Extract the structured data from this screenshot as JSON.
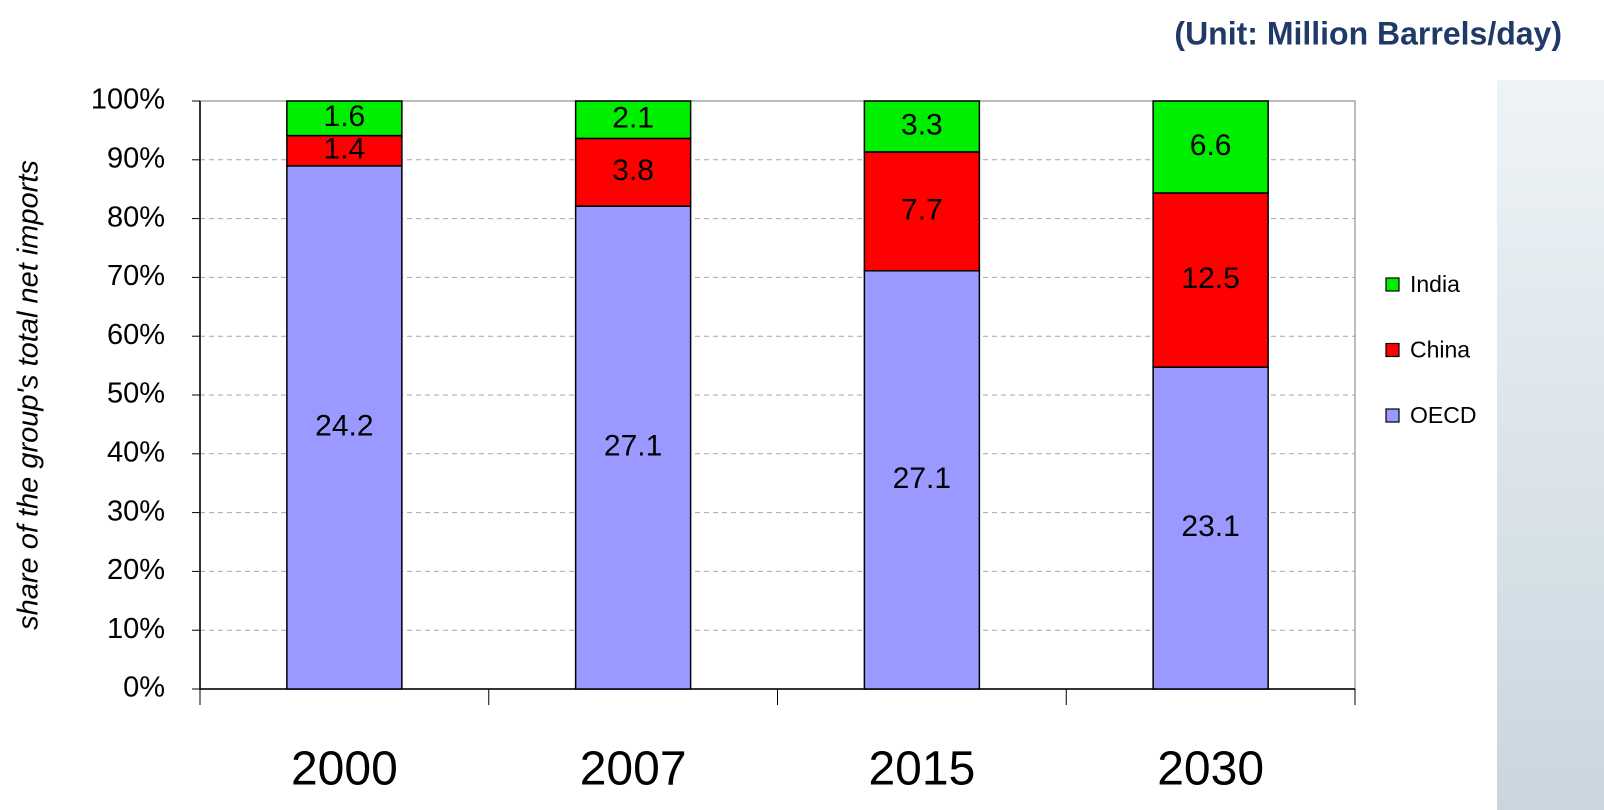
{
  "chart_data": {
    "type": "bar",
    "stacking": "percent",
    "title": "(Unit: Million Barrels/day)",
    "y_label": "share of the  group's total net imports",
    "categories": [
      "2000",
      "2007",
      "2015",
      "2030"
    ],
    "series": [
      {
        "name": "OECD",
        "color": "#9999ff",
        "values": [
          24.2,
          27.1,
          27.1,
          23.1
        ]
      },
      {
        "name": "China",
        "color": "#ff0000",
        "values": [
          1.4,
          3.8,
          7.7,
          12.5
        ]
      },
      {
        "name": "India",
        "color": "#00ee00",
        "values": [
          1.6,
          2.1,
          3.3,
          6.6
        ]
      }
    ],
    "ylim": [
      0,
      100
    ],
    "yticks": [
      {
        "value": 0,
        "label": "0%"
      },
      {
        "value": 10,
        "label": "10%"
      },
      {
        "value": 20,
        "label": "20%"
      },
      {
        "value": 30,
        "label": "30%"
      },
      {
        "value": 40,
        "label": "40%"
      },
      {
        "value": 50,
        "label": "50%"
      },
      {
        "value": 60,
        "label": "60%"
      },
      {
        "value": 70,
        "label": "70%"
      },
      {
        "value": 80,
        "label": "80%"
      },
      {
        "value": 90,
        "label": "90%"
      },
      {
        "value": 100,
        "label": "100%"
      }
    ],
    "grid": true,
    "legend": "right"
  }
}
